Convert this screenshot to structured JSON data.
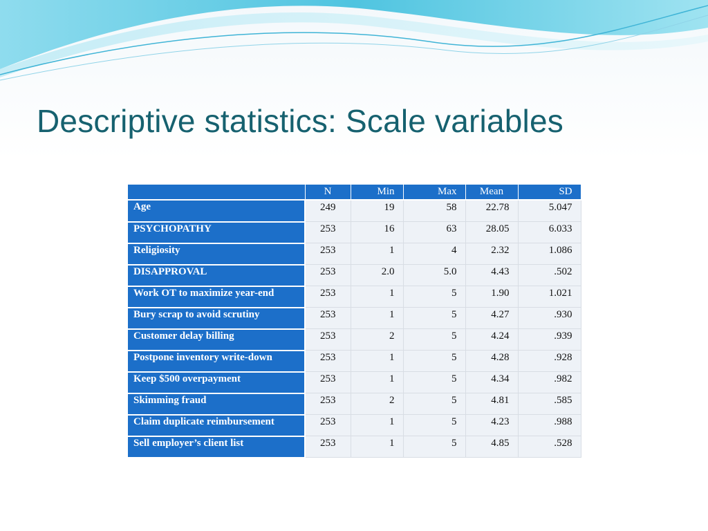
{
  "slide": {
    "title": "Descriptive statistics: Scale variables"
  },
  "table": {
    "headers": [
      "",
      "N",
      "Min",
      "Max",
      "Mean",
      "SD"
    ],
    "rows": [
      {
        "label": "Age",
        "n": "249",
        "min": "19",
        "max": "58",
        "mean": "22.78",
        "sd": "5.047"
      },
      {
        "label": "PSYCHOPATHY",
        "n": "253",
        "min": "16",
        "max": "63",
        "mean": "28.05",
        "sd": "6.033"
      },
      {
        "label": "Religiosity",
        "n": "253",
        "min": "1",
        "max": "4",
        "mean": "2.32",
        "sd": "1.086"
      },
      {
        "label": "DISAPPROVAL",
        "n": "253",
        "min": "2.0",
        "max": "5.0",
        "mean": "4.43",
        "sd": ".502"
      },
      {
        "label": "Work OT to maximize year-end",
        "n": "253",
        "min": "1",
        "max": "5",
        "mean": "1.90",
        "sd": "1.021"
      },
      {
        "label": "Bury scrap to avoid scrutiny",
        "n": "253",
        "min": "1",
        "max": "5",
        "mean": "4.27",
        "sd": ".930"
      },
      {
        "label": "Customer delay billing",
        "n": "253",
        "min": "2",
        "max": "5",
        "mean": "4.24",
        "sd": ".939"
      },
      {
        "label": "Postpone inventory write-down",
        "n": "253",
        "min": "1",
        "max": "5",
        "mean": "4.28",
        "sd": ".928"
      },
      {
        "label": "Keep $500 overpayment",
        "n": "253",
        "min": "1",
        "max": "5",
        "mean": "4.34",
        "sd": ".982"
      },
      {
        "label": "Skimming fraud",
        "n": "253",
        "min": "2",
        "max": "5",
        "mean": "4.81",
        "sd": ".585"
      },
      {
        "label": "Claim duplicate reimbursement",
        "n": "253",
        "min": "1",
        "max": "5",
        "mean": "4.23",
        "sd": ".988"
      },
      {
        "label": "Sell employer’s client list",
        "n": "253",
        "min": "1",
        "max": "5",
        "mean": "4.85",
        "sd": ".528"
      }
    ]
  },
  "colors": {
    "title": "#16616f",
    "header_fill": "#1c6fc9",
    "cell_fill": "#eef2f7",
    "wave_primary": "#5cc9e4"
  }
}
